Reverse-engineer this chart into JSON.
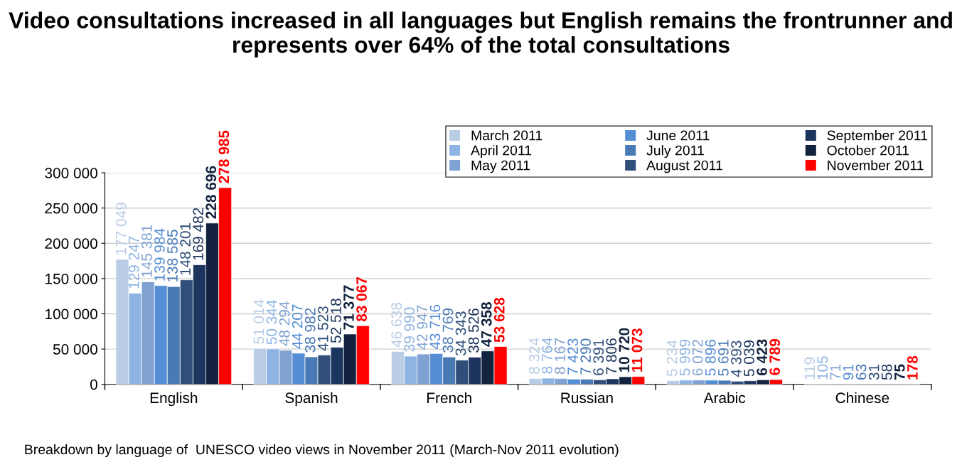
{
  "chart_data": {
    "type": "bar",
    "title": "Video consultations increased in all languages but English remains the frontrunner and represents over 64% of the total consultations",
    "categories": [
      "English",
      "Spanish",
      "French",
      "Russian",
      "Arabic",
      "Chinese"
    ],
    "series": [
      {
        "name": "March 2011",
        "color": "#b9cde5",
        "values": [
          177049,
          51014,
          46638,
          8324,
          5234,
          119
        ],
        "value_labels": [
          "177 049",
          "51 014",
          "46 638",
          "8 324",
          "5 234",
          "119"
        ]
      },
      {
        "name": "April 2011",
        "color": "#8eb4e3",
        "values": [
          129247,
          50344,
          39990,
          8764,
          5999,
          105
        ],
        "value_labels": [
          "129 247",
          "50 344",
          "39 990",
          "8 764",
          "5 999",
          "105"
        ]
      },
      {
        "name": "May 2011",
        "color": "#7fa2d2",
        "values": [
          145381,
          48294,
          42947,
          8167,
          6072,
          71
        ],
        "value_labels": [
          "145 381",
          "48 294",
          "42 947",
          "8 167",
          "6 072",
          "71"
        ]
      },
      {
        "name": "June 2011",
        "color": "#558ed5",
        "values": [
          139984,
          44207,
          43716,
          7423,
          5896,
          91
        ],
        "value_labels": [
          "139 984",
          "44 207",
          "43 716",
          "7 423",
          "5 896",
          "91"
        ]
      },
      {
        "name": "July 2011",
        "color": "#4a7ab6",
        "values": [
          138585,
          38982,
          38769,
          7290,
          5691,
          63
        ],
        "value_labels": [
          "138 585",
          "38 982",
          "38 769",
          "7 290",
          "5 691",
          "63"
        ]
      },
      {
        "name": "August 2011",
        "color": "#2f4f7a",
        "values": [
          148201,
          41523,
          34343,
          6391,
          4393,
          31
        ],
        "value_labels": [
          "148 201",
          "41 523",
          "34 343",
          "6 391",
          "4 393",
          "31"
        ]
      },
      {
        "name": "September 2011",
        "color": "#1c355e",
        "values": [
          169482,
          52518,
          38526,
          7806,
          5039,
          58
        ],
        "value_labels": [
          "169 482",
          "52 518",
          "38 526",
          "7 806",
          "5 039",
          "58"
        ]
      },
      {
        "name": "October 2011",
        "color": "#13233f",
        "values": [
          228696,
          71377,
          47358,
          10720,
          6423,
          75
        ],
        "value_labels": [
          "228 696",
          "71 377",
          "47 358",
          "10 720",
          "6 423",
          "75"
        ]
      },
      {
        "name": "November 2011",
        "color": "#ff0000",
        "values": [
          278985,
          83067,
          53628,
          11073,
          6789,
          178
        ],
        "value_labels": [
          "278 985",
          "83 067",
          "53 628",
          "11 073",
          "6 789",
          "178"
        ]
      }
    ],
    "ylim": [
      0,
      300000
    ],
    "yticks": [
      {
        "value": 0,
        "label": "0"
      },
      {
        "value": 50000,
        "label": "50 000"
      },
      {
        "value": 100000,
        "label": "100 000"
      },
      {
        "value": 150000,
        "label": "150 000"
      },
      {
        "value": 200000,
        "label": "200 000"
      },
      {
        "value": 250000,
        "label": "250 000"
      },
      {
        "value": 300000,
        "label": "300 000"
      }
    ],
    "grid": "y",
    "legend": "top right",
    "annotations": [
      "Breakdown by language of  UNESCO video views in November 2011 (March-Nov 2011 evolution)"
    ]
  }
}
